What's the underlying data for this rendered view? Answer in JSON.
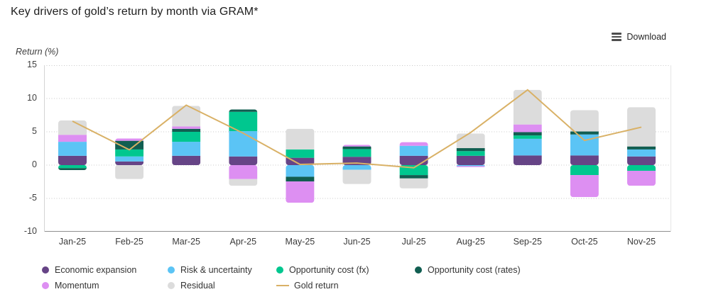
{
  "page": {
    "title": "Key drivers of gold’s return by month via GRAM*"
  },
  "toolbar": {
    "download_label": "Download",
    "download_icon": "menu-lines-icon"
  },
  "chart_data": {
    "type": "bar",
    "variant": "stacked-bar-with-line-overlay",
    "title": "Key drivers of gold’s return by month via GRAM*",
    "ylabel": "Return (%)",
    "xlabel": "",
    "ylim": [
      -10,
      15
    ],
    "yticks": [
      15,
      10,
      5,
      0,
      -5,
      -10
    ],
    "grid": "dotted-horizontal",
    "legend_position": "bottom",
    "categories": [
      "Jan-25",
      "Feb-25",
      "Mar-25",
      "Apr-25",
      "May-25",
      "Jun-25",
      "Jul-25",
      "Aug-25",
      "Sep-25",
      "Oct-25",
      "Nov-25"
    ],
    "series": [
      {
        "name": "Economic expansion",
        "color": "#664486",
        "values": [
          1.4,
          0.55,
          1.4,
          1.3,
          1.1,
          1.25,
          1.4,
          1.4,
          1.45,
          1.45,
          1.3
        ]
      },
      {
        "name": "Risk & uncertainty",
        "color": "#5bc4f5",
        "values": [
          2.1,
          0.75,
          2.1,
          3.8,
          -1.75,
          -0.7,
          1.5,
          -0.15,
          2.5,
          3.15,
          1.05
        ]
      },
      {
        "name": "Opportunity cost (fx)",
        "color": "#00c78f",
        "values": [
          -0.45,
          1.05,
          1.5,
          2.9,
          1.25,
          1.15,
          -1.5,
          0.7,
          0.5,
          -1.5,
          -0.85
        ]
      },
      {
        "name": "Opportunity cost (rates)",
        "color": "#115e51",
        "values": [
          -0.3,
          1.3,
          0.45,
          0.35,
          -0.7,
          0.4,
          -0.5,
          0.45,
          0.5,
          0.45,
          0.45
        ]
      },
      {
        "name": "Momentum",
        "color": "#dd8ff2",
        "values": [
          1.05,
          0.35,
          0.35,
          -2.1,
          -3.2,
          0.25,
          0.55,
          -0.15,
          1.15,
          -3.3,
          -2.25
        ]
      },
      {
        "name": "Residual",
        "color": "#dcdcdc",
        "values": [
          2.15,
          -2.1,
          3.1,
          -1.0,
          3.1,
          -2.15,
          -1.5,
          2.2,
          5.2,
          3.2,
          5.9
        ]
      }
    ],
    "line_series": {
      "name": "Gold return",
      "color": "#d9b166",
      "values": [
        6.6,
        2.3,
        9.0,
        4.8,
        0.1,
        0.3,
        -0.4,
        4.9,
        11.3,
        3.7,
        5.7
      ]
    },
    "axis_colors": {
      "gridline": "#c8c8c8",
      "axis_line": "#8f8f8f",
      "left_border": "#d4d4d4",
      "right_border": "#e6e6e6"
    }
  }
}
